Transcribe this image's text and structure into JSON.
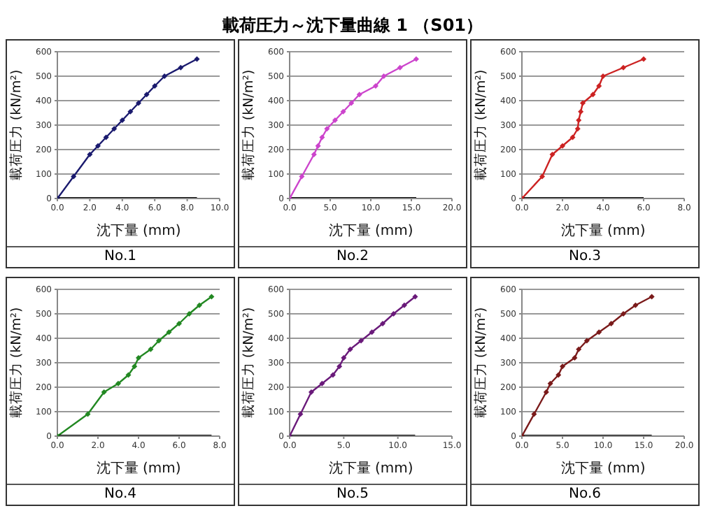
{
  "chart_data": [
    {
      "type": "line",
      "title": "No.1",
      "annotations": [
        "載荷圧力～沈下量曲線 1 （S01）"
      ],
      "xlabel": "沈下量 (mm)",
      "ylabel": "載荷圧力 (kN/m²)",
      "xlim": [
        0,
        10
      ],
      "xticks": [
        {
          "value": 0,
          "label": "0.0"
        },
        {
          "value": 2,
          "label": "2.0"
        },
        {
          "value": 4,
          "label": "4.0"
        },
        {
          "value": 6,
          "label": "6.0"
        },
        {
          "value": 8,
          "label": "8.0"
        },
        {
          "value": 10,
          "label": "10.0"
        }
      ],
      "ylim": [
        0,
        600
      ],
      "yticks": [
        0,
        100,
        200,
        300,
        400,
        500,
        600
      ],
      "grid": "y",
      "marker": "diamond",
      "series": [
        {
          "color": "#1a1a6e",
          "x": [
            0,
            1,
            2,
            2.5,
            3,
            3.5,
            4,
            4.5,
            5,
            5.5,
            6,
            6.6,
            7.6,
            8.6
          ],
          "values": [
            0,
            90,
            180,
            215,
            250,
            285,
            320,
            355,
            390,
            425,
            460,
            500,
            535,
            570
          ]
        },
        {
          "color": "#000000",
          "marker": "none",
          "x": [
            0,
            8.6
          ],
          "values": [
            0,
            0
          ]
        }
      ]
    },
    {
      "type": "line",
      "title": "No.2",
      "xlabel": "沈下量 (mm)",
      "ylabel": "載荷圧力 (kN/m²)",
      "xlim": [
        0,
        20
      ],
      "xticks": [
        {
          "value": 0,
          "label": "0.0"
        },
        {
          "value": 5,
          "label": "5.0"
        },
        {
          "value": 10,
          "label": "10.0"
        },
        {
          "value": 15,
          "label": "15.0"
        },
        {
          "value": 20,
          "label": "20.0"
        }
      ],
      "ylim": [
        0,
        600
      ],
      "yticks": [
        0,
        100,
        200,
        300,
        400,
        500,
        600
      ],
      "grid": "y",
      "marker": "diamond",
      "series": [
        {
          "color": "#cc44cc",
          "x": [
            0,
            1.5,
            3,
            3.5,
            4,
            4.6,
            5.6,
            6.6,
            7.6,
            8.6,
            10.6,
            11.6,
            13.6,
            15.6
          ],
          "values": [
            0,
            90,
            180,
            215,
            250,
            285,
            320,
            355,
            390,
            425,
            460,
            500,
            535,
            570
          ]
        },
        {
          "color": "#000000",
          "marker": "none",
          "x": [
            0,
            15.6
          ],
          "values": [
            0,
            0
          ]
        }
      ]
    },
    {
      "type": "line",
      "title": "No.3",
      "xlabel": "沈下量 (mm)",
      "ylabel": "載荷圧力 (kN/m²)",
      "xlim": [
        0,
        8
      ],
      "xticks": [
        {
          "value": 0,
          "label": "0.0"
        },
        {
          "value": 2,
          "label": "2.0"
        },
        {
          "value": 4,
          "label": "4.0"
        },
        {
          "value": 6,
          "label": "6.0"
        },
        {
          "value": 8,
          "label": "8.0"
        }
      ],
      "ylim": [
        0,
        600
      ],
      "yticks": [
        0,
        100,
        200,
        300,
        400,
        500,
        600
      ],
      "grid": "y",
      "marker": "diamond",
      "series": [
        {
          "color": "#cc2222",
          "x": [
            0,
            1,
            1.5,
            2,
            2.5,
            2.75,
            2.8,
            2.9,
            3,
            3.5,
            3.8,
            4,
            5,
            6
          ],
          "values": [
            0,
            90,
            180,
            215,
            250,
            285,
            320,
            355,
            390,
            425,
            460,
            500,
            535,
            570
          ]
        },
        {
          "color": "#000000",
          "marker": "none",
          "x": [
            0,
            6
          ],
          "values": [
            0,
            0
          ]
        }
      ]
    },
    {
      "type": "line",
      "title": "No.4",
      "xlabel": "沈下量 (mm)",
      "ylabel": "載荷圧力 (kN/m²)",
      "xlim": [
        0,
        8
      ],
      "xticks": [
        {
          "value": 0,
          "label": "0.0"
        },
        {
          "value": 2,
          "label": "2.0"
        },
        {
          "value": 4,
          "label": "4.0"
        },
        {
          "value": 6,
          "label": "6.0"
        },
        {
          "value": 8,
          "label": "8.0"
        }
      ],
      "ylim": [
        0,
        600
      ],
      "yticks": [
        0,
        100,
        200,
        300,
        400,
        500,
        600
      ],
      "grid": "y",
      "marker": "diamond",
      "series": [
        {
          "color": "#228822",
          "x": [
            0,
            1.5,
            2.3,
            3,
            3.5,
            3.8,
            4,
            4.6,
            5,
            5.5,
            6,
            6.5,
            7,
            7.6
          ],
          "values": [
            0,
            90,
            180,
            215,
            250,
            285,
            320,
            355,
            390,
            425,
            460,
            500,
            535,
            570
          ]
        },
        {
          "color": "#000000",
          "marker": "none",
          "x": [
            0,
            7.6
          ],
          "values": [
            0,
            0
          ]
        }
      ]
    },
    {
      "type": "line",
      "title": "No.5",
      "xlabel": "沈下量 (mm)",
      "ylabel": "載荷圧力 (kN/m²)",
      "xlim": [
        0,
        15
      ],
      "xticks": [
        {
          "value": 0,
          "label": "0.0"
        },
        {
          "value": 5,
          "label": "5.0"
        },
        {
          "value": 10,
          "label": "10.0"
        },
        {
          "value": 15,
          "label": "15.0"
        }
      ],
      "ylim": [
        0,
        600
      ],
      "yticks": [
        0,
        100,
        200,
        300,
        400,
        500,
        600
      ],
      "grid": "y",
      "marker": "diamond",
      "series": [
        {
          "color": "#6a1a7a",
          "x": [
            0,
            1,
            2,
            3,
            4,
            4.6,
            5,
            5.6,
            6.6,
            7.6,
            8.6,
            9.6,
            10.6,
            11.6
          ],
          "values": [
            0,
            90,
            180,
            215,
            250,
            285,
            320,
            355,
            390,
            425,
            460,
            500,
            535,
            570
          ]
        },
        {
          "color": "#000000",
          "marker": "none",
          "x": [
            0,
            11.6
          ],
          "values": [
            0,
            0
          ]
        }
      ]
    },
    {
      "type": "line",
      "title": "No.6",
      "xlabel": "沈下量 (mm)",
      "ylabel": "載荷圧力 (kN/m²)",
      "xlim": [
        0,
        20
      ],
      "xticks": [
        {
          "value": 0,
          "label": "0.0"
        },
        {
          "value": 5,
          "label": "5.0"
        },
        {
          "value": 10,
          "label": "10.0"
        },
        {
          "value": 15,
          "label": "15.0"
        },
        {
          "value": 20,
          "label": "20.0"
        }
      ],
      "ylim": [
        0,
        600
      ],
      "yticks": [
        0,
        100,
        200,
        300,
        400,
        500,
        600
      ],
      "grid": "y",
      "marker": "diamond",
      "series": [
        {
          "color": "#7a1a1a",
          "x": [
            0,
            1.5,
            3,
            3.5,
            4.5,
            5,
            6.5,
            7,
            8,
            9.5,
            11,
            12.5,
            14,
            16
          ],
          "values": [
            0,
            90,
            180,
            215,
            250,
            285,
            320,
            355,
            390,
            425,
            460,
            500,
            535,
            570
          ]
        },
        {
          "color": "#000000",
          "marker": "none",
          "x": [
            0,
            16
          ],
          "values": [
            0,
            0
          ]
        }
      ]
    }
  ]
}
